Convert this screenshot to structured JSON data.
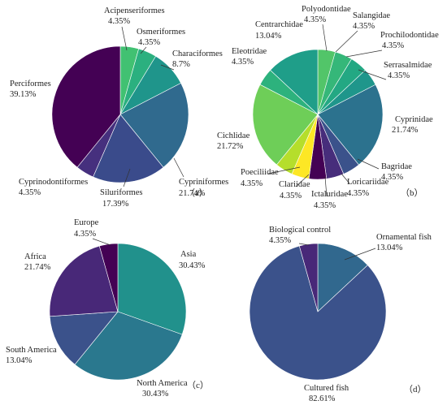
{
  "chart_data": [
    {
      "type": "pie",
      "panel_label": "（a）",
      "slices": [
        {
          "label": "Acipenseriformes",
          "pct": "4.35%",
          "value": 4.35,
          "color": "#41c172"
        },
        {
          "label": "Osmeriformes",
          "pct": "4.35%",
          "value": 4.35,
          "color": "#2bb07f"
        },
        {
          "label": "Characiformes",
          "pct": "8.7%",
          "value": 8.7,
          "color": "#1f958b"
        },
        {
          "label": "Cypriniformes",
          "pct": "21.74%",
          "value": 21.74,
          "color": "#306a8e"
        },
        {
          "label": "Siluriformes",
          "pct": "17.39%",
          "value": 17.39,
          "color": "#3a4b8b"
        },
        {
          "label": "Cyprinodontiformes",
          "pct": "4.35%",
          "value": 4.35,
          "color": "#46307e"
        },
        {
          "label": "Perciformes",
          "pct": "39.13%",
          "value": 39.13,
          "color": "#440154"
        }
      ]
    },
    {
      "type": "pie",
      "panel_label": "（b）",
      "slices": [
        {
          "label": "Polyodontidae",
          "pct": "4.35%",
          "value": 4.35,
          "color": "#52c569"
        },
        {
          "label": "Salangidae",
          "pct": "4.35%",
          "value": 4.35,
          "color": "#35b779"
        },
        {
          "label": "Prochilodontidae",
          "pct": "4.35%",
          "value": 4.35,
          "color": "#23a883"
        },
        {
          "label": "Serrasalmidae",
          "pct": "4.35%",
          "value": 4.35,
          "color": "#1f968b"
        },
        {
          "label": "Cyprinidae",
          "pct": "21.74%",
          "value": 21.74,
          "color": "#2c728e"
        },
        {
          "label": "Bagridae",
          "pct": "4.35%",
          "value": 4.35,
          "color": "#3b528b"
        },
        {
          "label": "Loricariidae",
          "pct": "4.35%",
          "value": 4.35,
          "color": "#472d7b"
        },
        {
          "label": "Ictaluridae",
          "pct": "4.35%",
          "value": 4.35,
          "color": "#440154"
        },
        {
          "label": "Clariidae",
          "pct": "4.35%",
          "value": 4.35,
          "color": "#fde725"
        },
        {
          "label": "Poeciliidae",
          "pct": "4.35%",
          "value": 4.35,
          "color": "#b5de2b"
        },
        {
          "label": "Cichlidae",
          "pct": "21.72%",
          "value": 21.72,
          "color": "#6ece58"
        },
        {
          "label": "Eleotridae",
          "pct": "4.35%",
          "value": 4.35,
          "color": "#2db27d"
        },
        {
          "label": "Centrarchidae",
          "pct": "13.04%",
          "value": 13.04,
          "color": "#1f9e89"
        }
      ]
    },
    {
      "type": "pie",
      "panel_label": "（c）",
      "slices": [
        {
          "label": "Asia",
          "pct": "30.43%",
          "value": 30.43,
          "color": "#21918c"
        },
        {
          "label": "North America",
          "pct": "30.43%",
          "value": 30.43,
          "color": "#2a788e"
        },
        {
          "label": "South America",
          "pct": "13.04%",
          "value": 13.04,
          "color": "#3b528b"
        },
        {
          "label": "Africa",
          "pct": "21.74%",
          "value": 21.74,
          "color": "#482878"
        },
        {
          "label": "Europe",
          "pct": "4.35%",
          "value": 4.35,
          "color": "#440154"
        }
      ]
    },
    {
      "type": "pie",
      "panel_label": "（d）",
      "slices": [
        {
          "label": "Ornamental fish",
          "pct": "13.04%",
          "value": 13.04,
          "color": "#31688e"
        },
        {
          "label": "Cultured fish",
          "pct": "82.61%",
          "value": 82.61,
          "color": "#3b528b"
        },
        {
          "label": "Biological control",
          "pct": "4.35%",
          "value": 4.35,
          "color": "#482878"
        }
      ]
    }
  ]
}
